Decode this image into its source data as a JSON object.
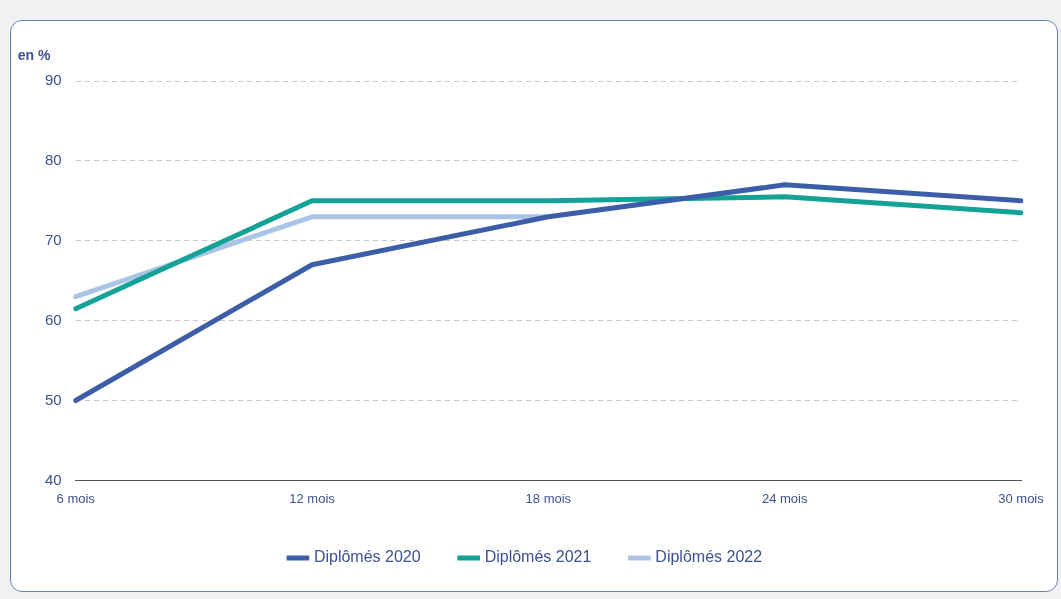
{
  "chart_data": {
    "type": "line",
    "ylabel": "en %",
    "categories": [
      "6 mois",
      "12 mois",
      "18 mois",
      "24 mois",
      "30 mois"
    ],
    "series": [
      {
        "name": "Diplômés 2020",
        "color": "#3c5ea8",
        "values": [
          50,
          67,
          73,
          77,
          75
        ]
      },
      {
        "name": "Diplômés 2021",
        "color": "#12a396",
        "values": [
          61.5,
          75,
          75,
          75.5,
          73.5
        ]
      },
      {
        "name": "Diplômés 2022",
        "color": "#aac4e6",
        "values": [
          63,
          73,
          73,
          null,
          null
        ]
      }
    ],
    "ylim": [
      40,
      90
    ],
    "yticks": [
      40,
      50,
      60,
      70,
      80,
      90
    ],
    "grid": "y",
    "legend": "bottom",
    "marker": "none",
    "line_style": "solid"
  }
}
